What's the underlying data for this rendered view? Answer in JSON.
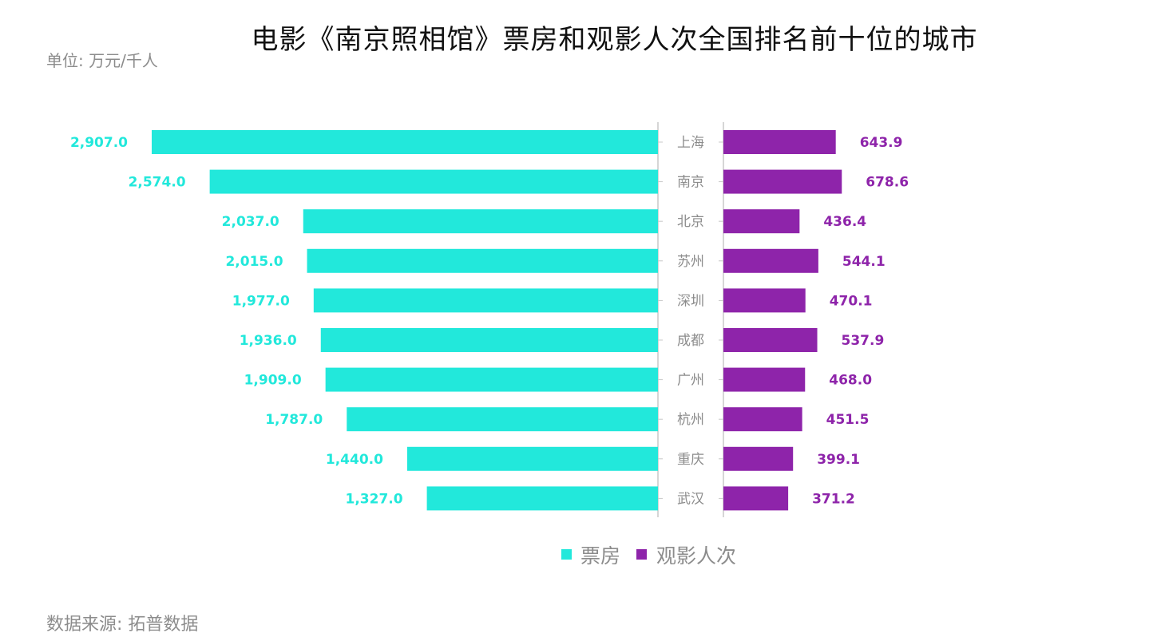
{
  "chart_data": {
    "type": "bar",
    "title": "电影《南京照相馆》票房和观影人次全国排名前十位的城市",
    "unit": "单位: 万元/千人",
    "source": "数据来源: 拓普数据",
    "categories": [
      "上海",
      "南京",
      "北京",
      "苏州",
      "深圳",
      "成都",
      "广州",
      "杭州",
      "重庆",
      "武汉"
    ],
    "series": [
      {
        "name": "票房",
        "values": [
          2907.0,
          2574.0,
          2037.0,
          2015.0,
          1977.0,
          1936.0,
          1909.0,
          1787.0,
          1440.0,
          1327.0
        ],
        "labels": [
          "2,907.0",
          "2,574.0",
          "2,037.0",
          "2,015.0",
          "1,977.0",
          "1,936.0",
          "1,909.0",
          "1,787.0",
          "1,440.0",
          "1,327.0"
        ],
        "color": "#22e8db"
      },
      {
        "name": "观影人次",
        "values": [
          643.9,
          678.6,
          436.4,
          544.1,
          470.1,
          537.9,
          468.0,
          451.5,
          399.1,
          371.2
        ],
        "labels": [
          "643.9",
          "678.6",
          "436.4",
          "544.1",
          "470.1",
          "537.9",
          "468.0",
          "451.5",
          "399.1",
          "371.2"
        ],
        "color": "#8e24aa"
      }
    ],
    "legend_placement": "bottom-center",
    "grid": false
  }
}
